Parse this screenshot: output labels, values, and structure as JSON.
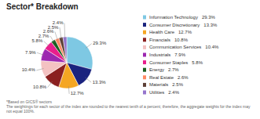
{
  "chart_data": {
    "type": "pie",
    "title": "Sector* Breakdown",
    "categories": [
      "Information Technology",
      "Consumer Discretionary",
      "Health Care",
      "Financials",
      "Communication Services",
      "Industrials",
      "Consumer Staples",
      "Energy",
      "Real Estate",
      "Materials",
      "Utilities"
    ],
    "values": [
      29.3,
      13.3,
      12.7,
      10.8,
      10.4,
      7.9,
      5.8,
      2.7,
      2.6,
      2.5,
      2.4
    ],
    "value_labels": [
      "29.3%",
      "13.3%",
      "12.7%",
      "10.8%",
      "10.4%",
      "7.9%",
      "5.8%",
      "2.7%",
      "2.6%",
      "2.5%",
      "2.4%"
    ],
    "colors": [
      "#7ec8e3",
      "#1a237e",
      "#f5a623",
      "#8b2020",
      "#f4c2c2",
      "#9c27b0",
      "#e91e8c",
      "#1b5e20",
      "#ff8a65",
      "#5d4037",
      "#9575cd"
    ],
    "data_labels": true,
    "legend": "right",
    "annotations": [
      "*Based on GICS® sectors",
      "The weightings for each sector of the index are rounded to the nearest tenth of a percent; therefore, the aggregate weights for the index may not equal 100%."
    ]
  }
}
